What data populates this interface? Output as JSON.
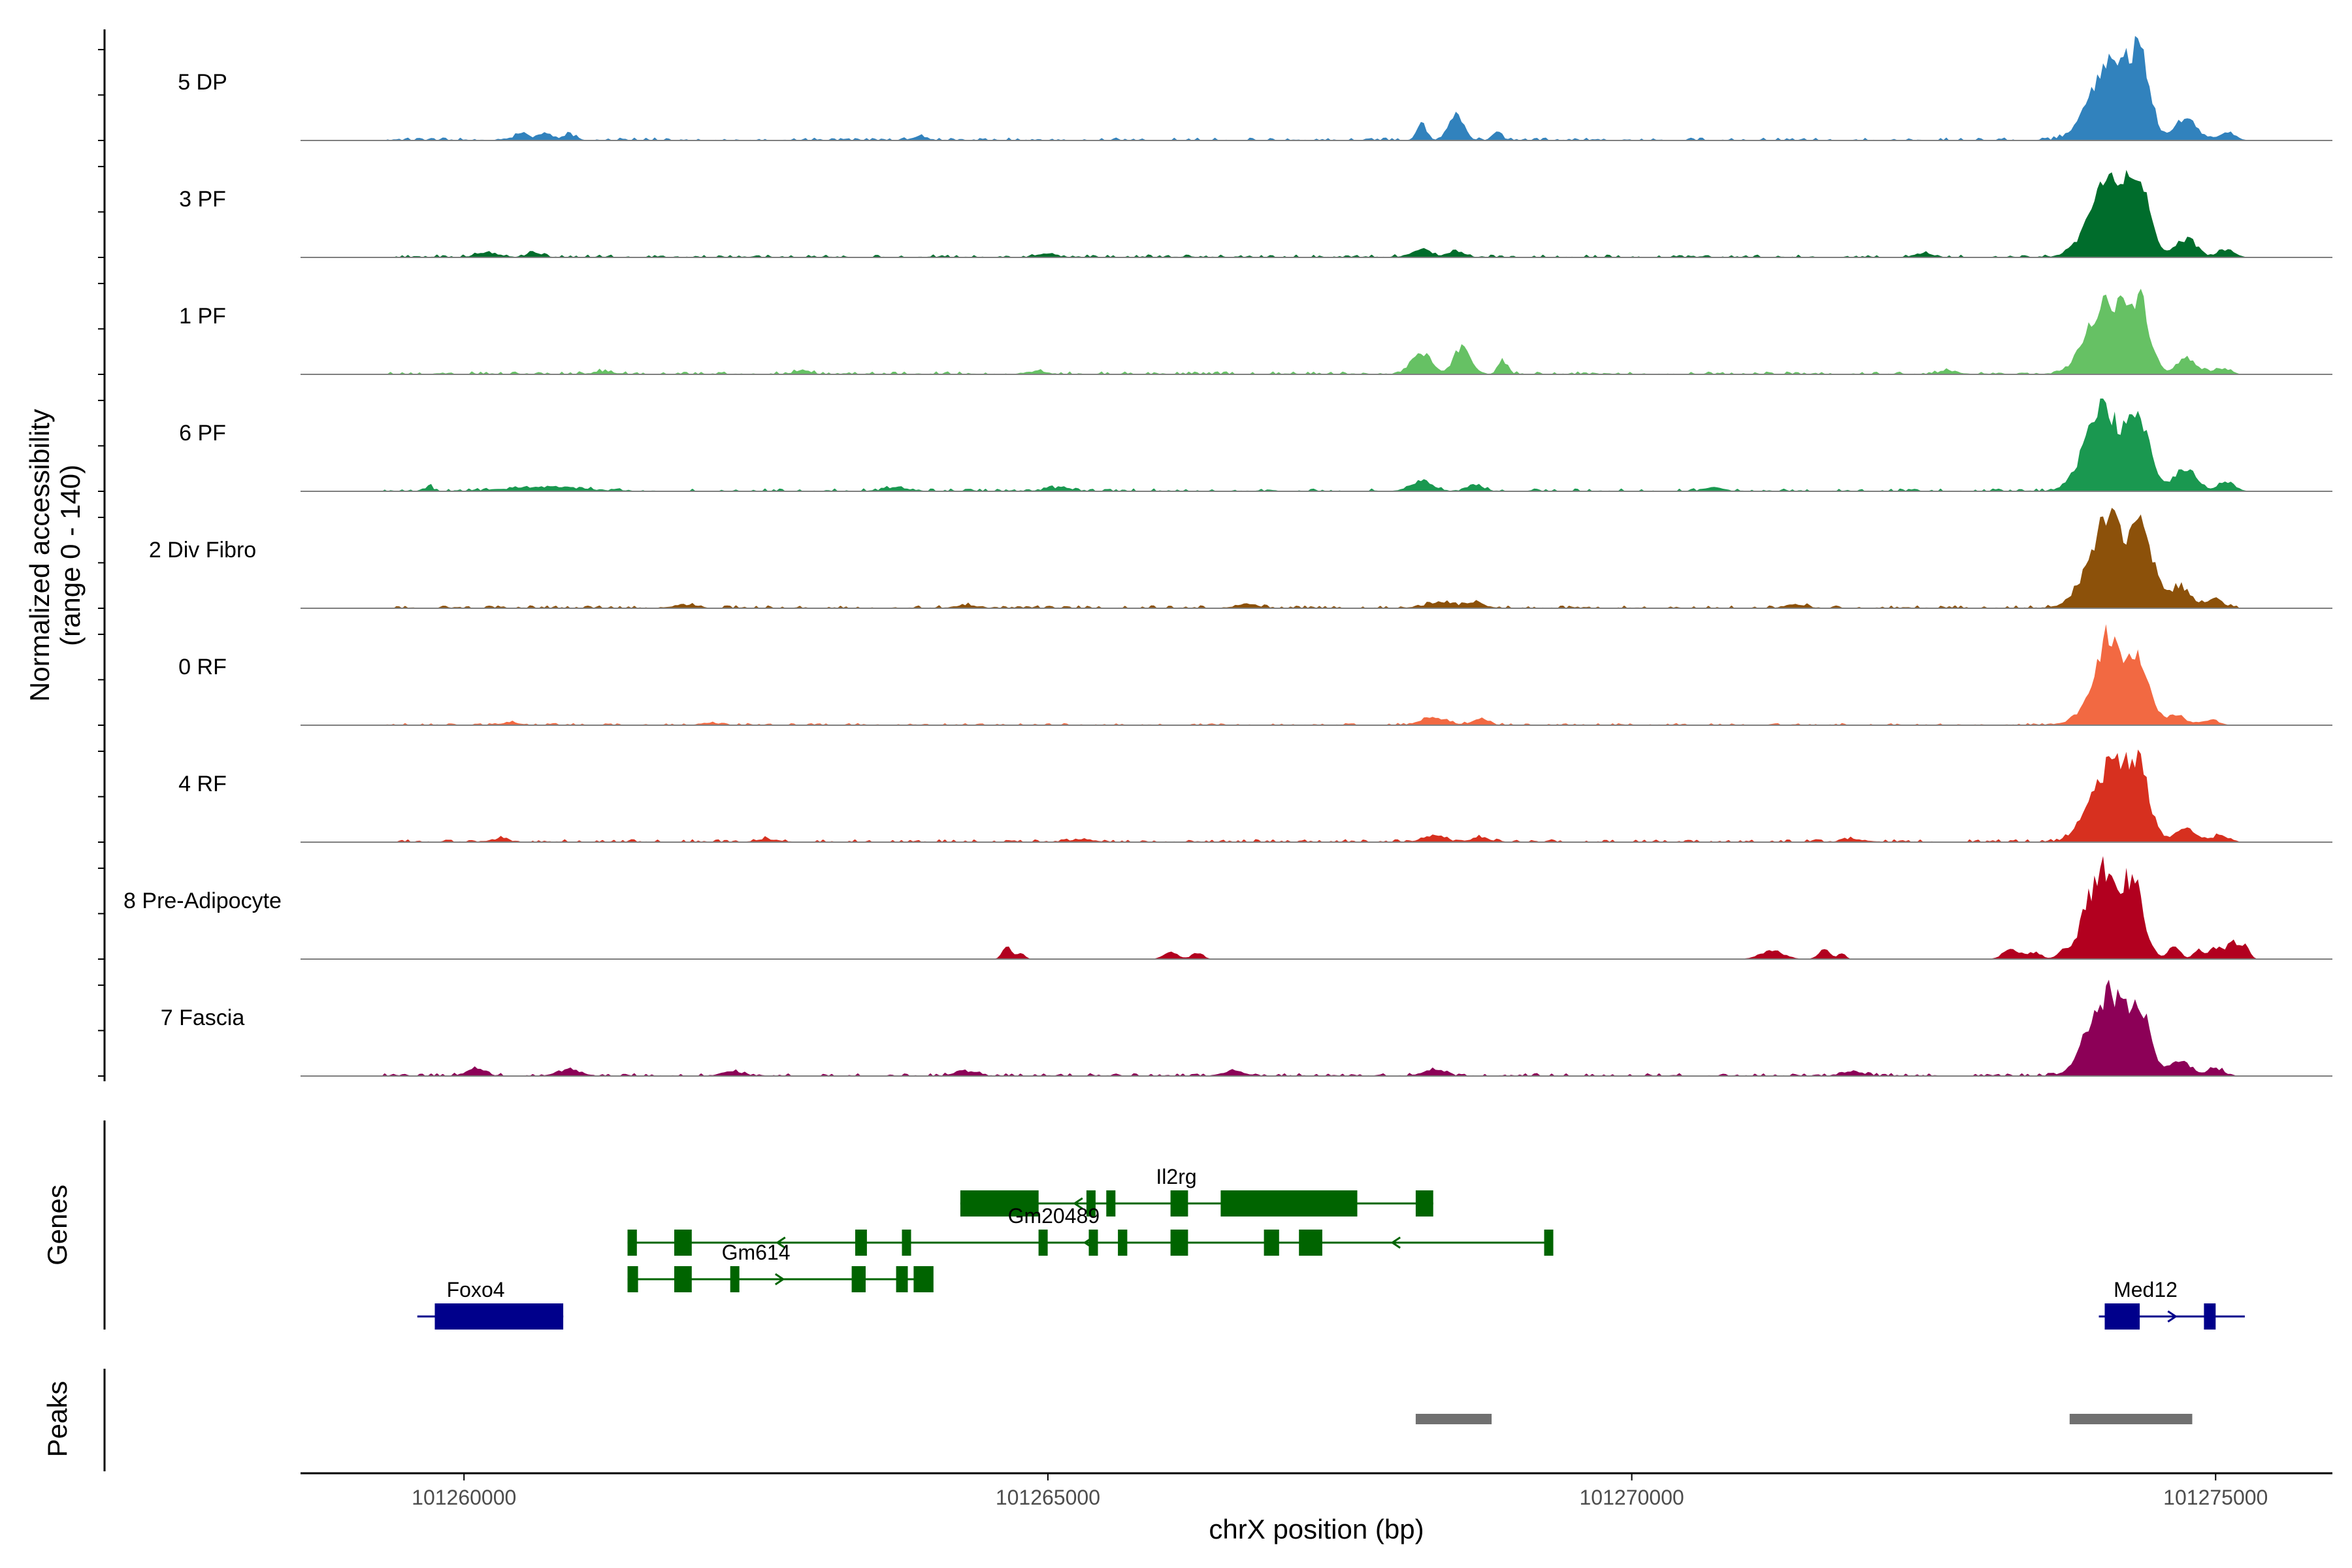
{
  "chart_data": {
    "type": "area",
    "region": {
      "chrom": "chrX",
      "start": 101258600,
      "end": 101276000
    },
    "ylabel_line1": "Normalized accessibility",
    "ylabel_line2": "(range 0 - 140)",
    "ylim": [
      0,
      140
    ],
    "xlabel": "chrX position (bp)",
    "x_ticks": [
      {
        "value": 101260000,
        "label": "101260000"
      },
      {
        "value": 101265000,
        "label": "101265000"
      },
      {
        "value": 101270000,
        "label": "101270000"
      },
      {
        "value": 101275000,
        "label": "101275000"
      }
    ],
    "genes_label": "Genes",
    "peaks_label": "Peaks",
    "series": [
      {
        "name": "5 DP",
        "color": "#3182bd",
        "peaks": [
          [
            101259300,
            101275200,
            4
          ],
          [
            101260500,
            60,
            10
          ],
          [
            101260700,
            60,
            9
          ],
          [
            101260900,
            50,
            8
          ],
          [
            101263900,
            60,
            6
          ],
          [
            101268200,
            40,
            24
          ],
          [
            101268500,
            60,
            35
          ],
          [
            101268850,
            40,
            12
          ],
          [
            101274150,
            160,
            78
          ],
          [
            101274350,
            90,
            84
          ],
          [
            101274000,
            150,
            40
          ],
          [
            101274750,
            90,
            30
          ],
          [
            101275100,
            70,
            10
          ]
        ]
      },
      {
        "name": "3 PF",
        "color": "#006d2c",
        "peaks": [
          [
            101259300,
            101275200,
            4
          ],
          [
            101260200,
            90,
            6
          ],
          [
            101260600,
            60,
            7
          ],
          [
            101265000,
            80,
            5
          ],
          [
            101268200,
            90,
            10
          ],
          [
            101268500,
            60,
            9
          ],
          [
            101272500,
            80,
            5
          ],
          [
            101274150,
            150,
            82
          ],
          [
            101274350,
            90,
            70
          ],
          [
            101274000,
            150,
            40
          ],
          [
            101274750,
            90,
            25
          ],
          [
            101275100,
            70,
            10
          ]
        ]
      },
      {
        "name": "1 PF",
        "color": "#66c164",
        "peaks": [
          [
            101259300,
            101275200,
            4
          ],
          [
            101261200,
            80,
            4
          ],
          [
            101262900,
            70,
            5
          ],
          [
            101264900,
            80,
            4
          ],
          [
            101268200,
            80,
            30
          ],
          [
            101268550,
            70,
            37
          ],
          [
            101268900,
            40,
            18
          ],
          [
            101272700,
            80,
            5
          ],
          [
            101274100,
            150,
            70
          ],
          [
            101274350,
            90,
            80
          ],
          [
            101274000,
            150,
            38
          ],
          [
            101274750,
            80,
            22
          ],
          [
            101275050,
            70,
            8
          ]
        ]
      },
      {
        "name": "6 PF",
        "color": "#1a9850",
        "peaks": [
          [
            101259300,
            101275200,
            4
          ],
          [
            101259700,
            30,
            7
          ],
          [
            101260700,
            300,
            6
          ],
          [
            101263700,
            100,
            5
          ],
          [
            101265100,
            100,
            5
          ],
          [
            101268200,
            90,
            14
          ],
          [
            101268650,
            70,
            8
          ],
          [
            101270700,
            80,
            5
          ],
          [
            101274050,
            150,
            70
          ],
          [
            101274350,
            100,
            84
          ],
          [
            101274000,
            150,
            40
          ],
          [
            101274750,
            90,
            30
          ],
          [
            101275100,
            70,
            12
          ]
        ]
      },
      {
        "name": "2 Div Fibro",
        "color": "#8c510a",
        "peaks": [
          [
            101259400,
            101275200,
            4
          ],
          [
            101261900,
            90,
            5
          ],
          [
            101264300,
            90,
            4
          ],
          [
            101266700,
            100,
            5
          ],
          [
            101268350,
            110,
            8
          ],
          [
            101268650,
            70,
            9
          ],
          [
            101271400,
            90,
            5
          ],
          [
            101274150,
            170,
            92
          ],
          [
            101274400,
            80,
            70
          ],
          [
            101274000,
            150,
            40
          ],
          [
            101274700,
            90,
            30
          ],
          [
            101275000,
            70,
            12
          ]
        ]
      },
      {
        "name": "0 RF",
        "color": "#f26942",
        "peaks": [
          [
            101259300,
            101275200,
            3
          ],
          [
            101260400,
            70,
            4
          ],
          [
            101262100,
            80,
            3
          ],
          [
            101268300,
            110,
            10
          ],
          [
            101268700,
            70,
            8
          ],
          [
            101274100,
            110,
            95
          ],
          [
            101274350,
            90,
            78
          ],
          [
            101274000,
            150,
            30
          ],
          [
            101274650,
            90,
            12
          ],
          [
            101274950,
            70,
            6
          ]
        ]
      },
      {
        "name": "4 RF",
        "color": "#d7301f",
        "peaks": [
          [
            101259300,
            101275200,
            4
          ],
          [
            101260300,
            80,
            4
          ],
          [
            101262600,
            80,
            4
          ],
          [
            101265300,
            80,
            4
          ],
          [
            101268300,
            90,
            9
          ],
          [
            101268700,
            70,
            7
          ],
          [
            101271900,
            80,
            4
          ],
          [
            101274150,
            150,
            82
          ],
          [
            101274350,
            90,
            72
          ],
          [
            101274000,
            150,
            35
          ],
          [
            101274750,
            90,
            18
          ],
          [
            101275050,
            70,
            8
          ]
        ]
      },
      {
        "name": "8 Pre-Adipocyte",
        "color": "#b2001f",
        "peaks": [
          [
            101264650,
            40,
            16
          ],
          [
            101264770,
            35,
            8
          ],
          [
            101266050,
            60,
            10
          ],
          [
            101266280,
            50,
            9
          ],
          [
            101271200,
            100,
            12
          ],
          [
            101271650,
            50,
            14
          ],
          [
            101271800,
            30,
            8
          ],
          [
            101273250,
            70,
            14
          ],
          [
            101273450,
            60,
            9
          ],
          [
            101273700,
            50,
            10
          ],
          [
            101273860,
            40,
            9
          ],
          [
            101274050,
            130,
            98
          ],
          [
            101274300,
            90,
            92
          ],
          [
            101274000,
            120,
            30
          ],
          [
            101274650,
            50,
            18
          ],
          [
            101274850,
            40,
            12
          ],
          [
            101275000,
            60,
            16
          ],
          [
            101275150,
            50,
            22
          ],
          [
            101275250,
            40,
            16
          ]
        ]
      },
      {
        "name": "7 Fascia",
        "color": "#8c0057",
        "peaks": [
          [
            101259300,
            101275200,
            4
          ],
          [
            101260100,
            80,
            9
          ],
          [
            101260900,
            90,
            9
          ],
          [
            101262300,
            90,
            6
          ],
          [
            101264300,
            90,
            6
          ],
          [
            101266600,
            90,
            6
          ],
          [
            101268300,
            90,
            8
          ],
          [
            101271900,
            80,
            6
          ],
          [
            101274100,
            150,
            82
          ],
          [
            101274350,
            90,
            78
          ],
          [
            101274000,
            150,
            35
          ],
          [
            101274700,
            90,
            20
          ],
          [
            101275000,
            70,
            10
          ]
        ]
      }
    ],
    "genes": [
      {
        "name": "Il2rg",
        "strand": "-",
        "row": 0,
        "label_x": 101266100,
        "line": [
          101264250,
          101268300
        ],
        "exons": [
          [
            101264250,
            101264920
          ],
          [
            101265330,
            101265370
          ],
          [
            101265500,
            101265560
          ],
          [
            101266050,
            101266200
          ],
          [
            101266480,
            101267650
          ],
          [
            101268150,
            101268300
          ]
        ]
      },
      {
        "name": "Gm20489",
        "strand": "-",
        "row": 1,
        "label_x": 101265050,
        "line": [
          101261400,
          101269300
        ],
        "exons": [
          [
            101261400,
            101261480
          ],
          [
            101261800,
            101261950
          ],
          [
            101263350,
            101263450
          ],
          [
            101263750,
            101263810
          ],
          [
            101264920,
            101264970
          ],
          [
            101265350,
            101265420
          ],
          [
            101265600,
            101265680
          ],
          [
            101266050,
            101266200
          ],
          [
            101266850,
            101266980
          ],
          [
            101267150,
            101267350
          ],
          [
            101269250,
            101269300
          ]
        ]
      },
      {
        "name": "Gm614",
        "strand": "+",
        "row": 2,
        "label_x": 101262500,
        "line": [
          101261400,
          101264000
        ],
        "exons": [
          [
            101261400,
            101261490
          ],
          [
            101261800,
            101261950
          ],
          [
            101262280,
            101262330
          ],
          [
            101263320,
            101263440
          ],
          [
            101263700,
            101263800
          ],
          [
            101263850,
            101264020
          ]
        ]
      },
      {
        "name": "Foxo4",
        "strand": "+",
        "row": 3,
        "label_x": 101260100,
        "line": [
          101259600,
          101260850
        ],
        "exons": [
          [
            101259750,
            101260850
          ]
        ]
      },
      {
        "name": "Med12",
        "strand": "+",
        "row": 3,
        "label_x": 101274400,
        "line": [
          101274000,
          101275250
        ],
        "exons": [
          [
            101274050,
            101274350
          ],
          [
            101274900,
            101275000
          ]
        ]
      }
    ],
    "peak_regions": [
      [
        101268150,
        101268800
      ],
      [
        101273750,
        101274800
      ]
    ]
  }
}
